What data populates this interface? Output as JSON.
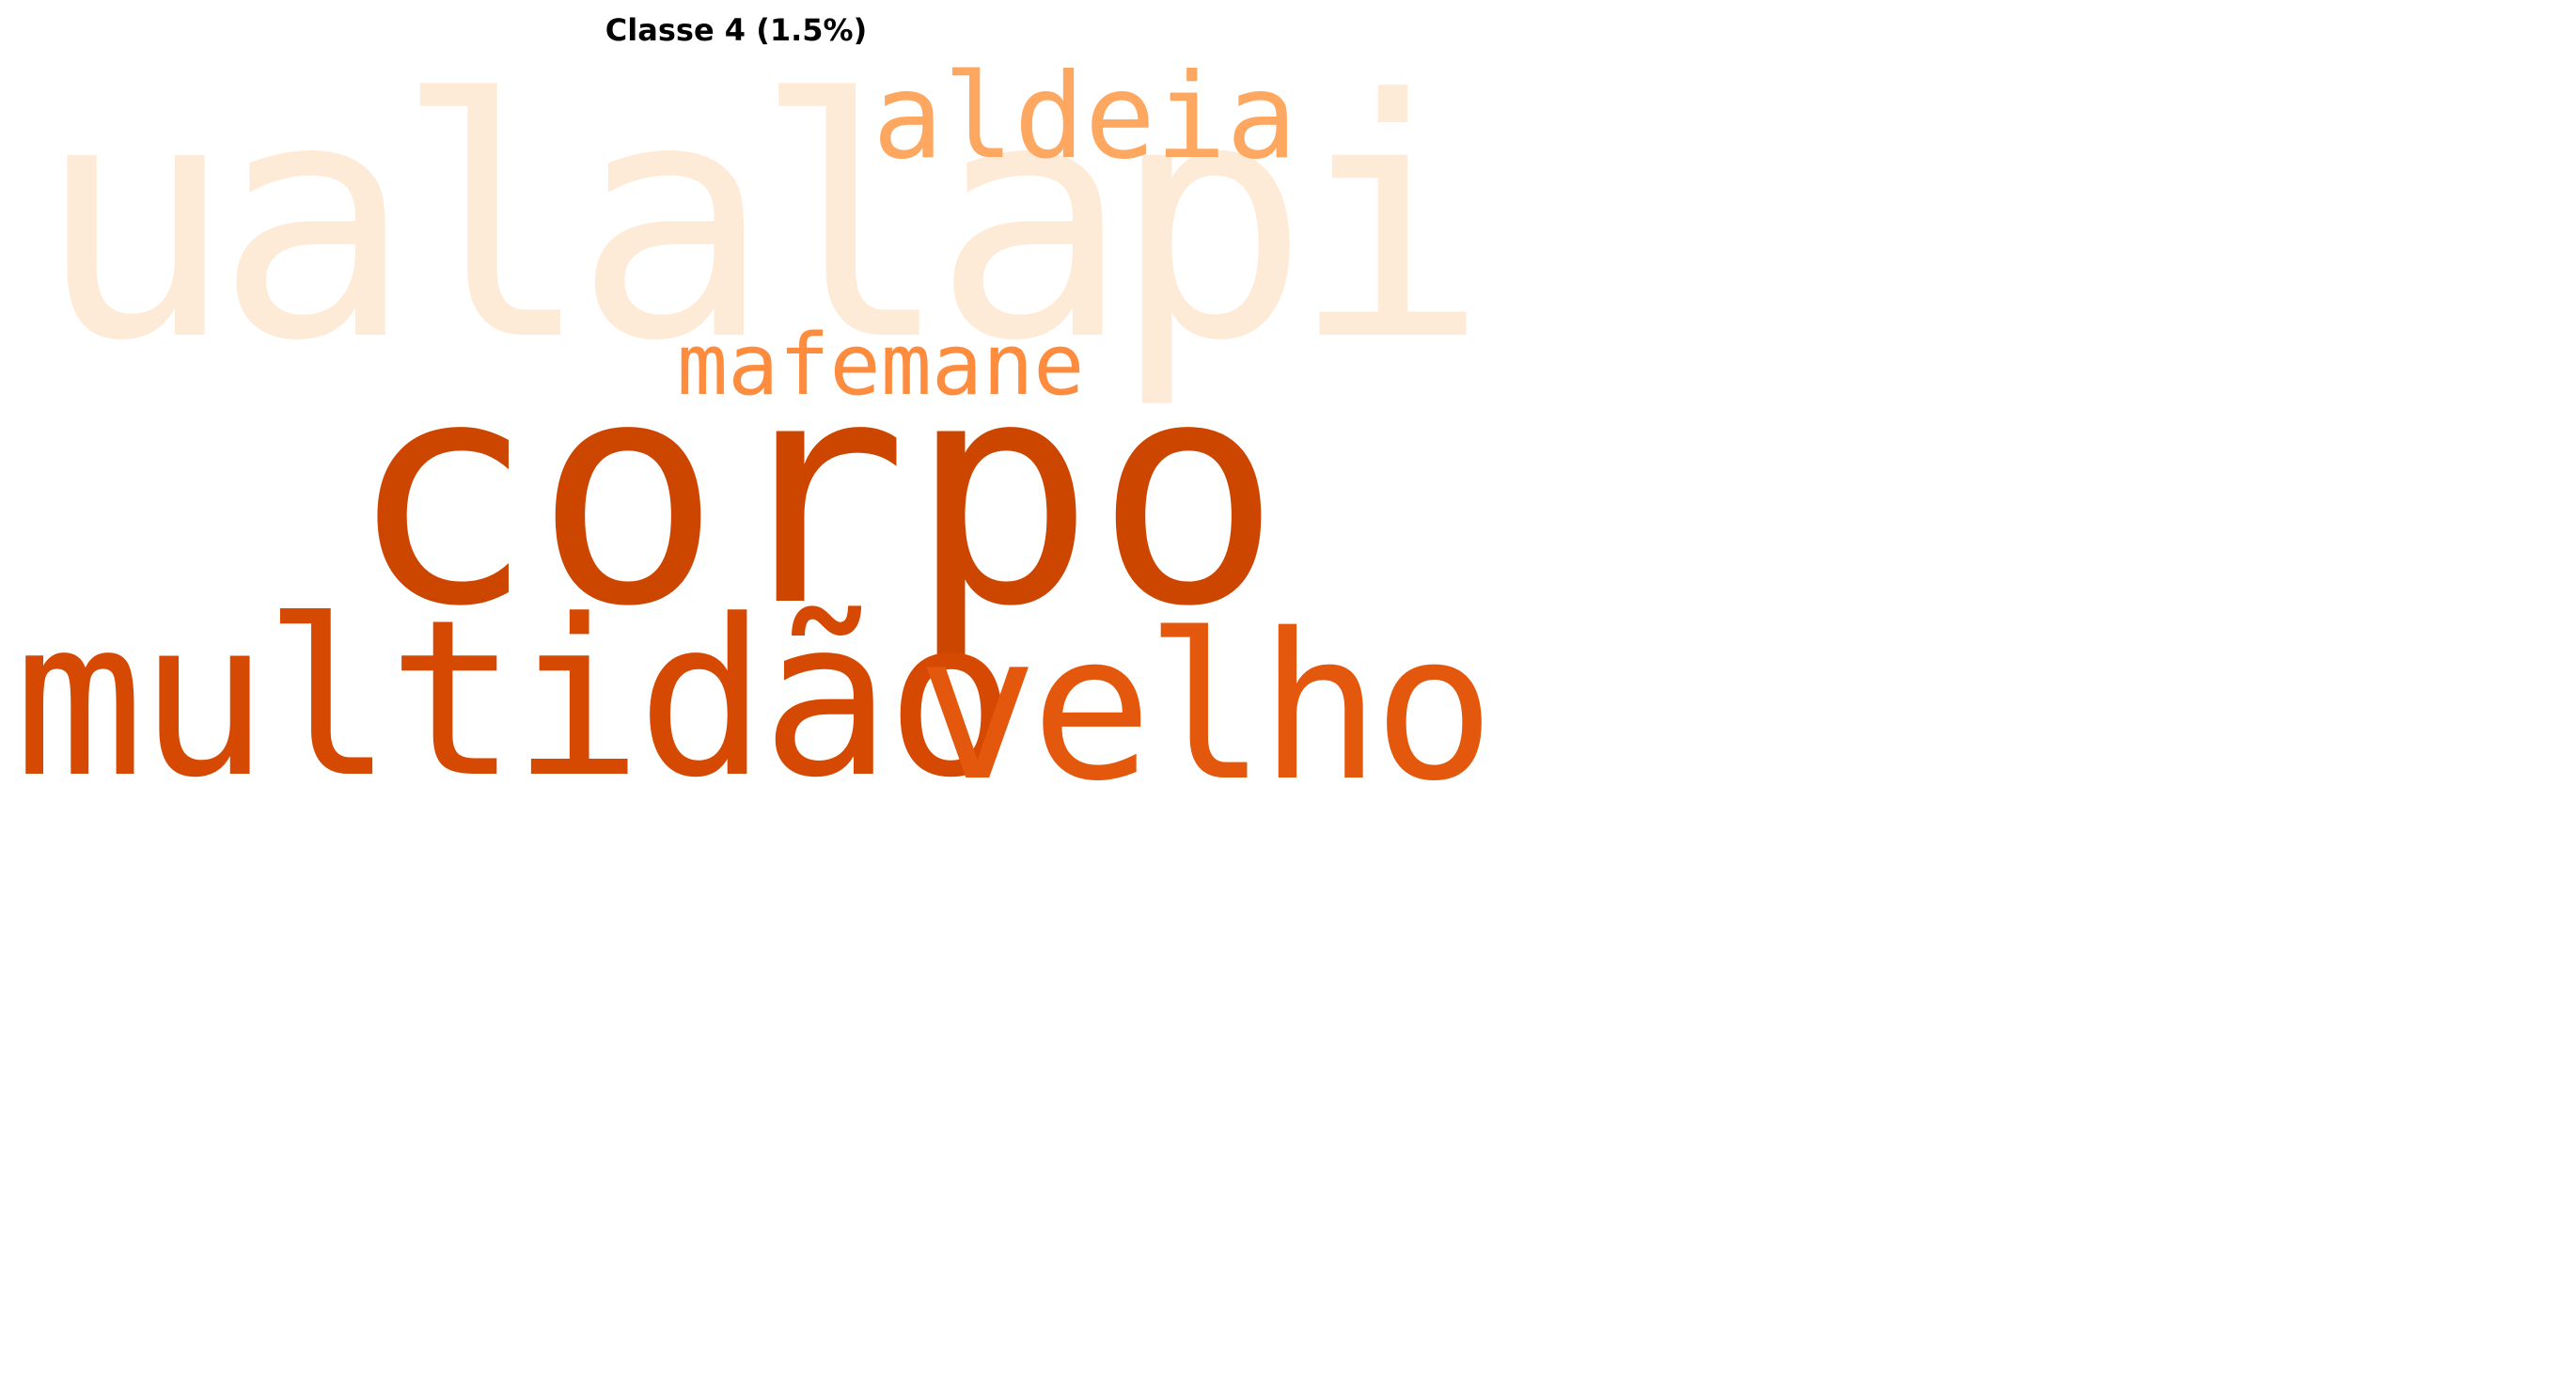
{
  "title": "Classe 4 (1.5%)",
  "words": [
    {
      "id": "ualalapi",
      "text": "ualalapi",
      "color": "#fdebd8"
    },
    {
      "id": "aldeia",
      "text": "aldeia",
      "color": "#fda761"
    },
    {
      "id": "mafemane",
      "text": "mafemane",
      "color": "#fd8c3e"
    },
    {
      "id": "corpo",
      "text": "corpo",
      "color": "#cd4600"
    },
    {
      "id": "multidao",
      "text": "multidão",
      "color": "#d54903"
    },
    {
      "id": "velho",
      "text": "velho",
      "color": "#e3580d"
    }
  ]
}
